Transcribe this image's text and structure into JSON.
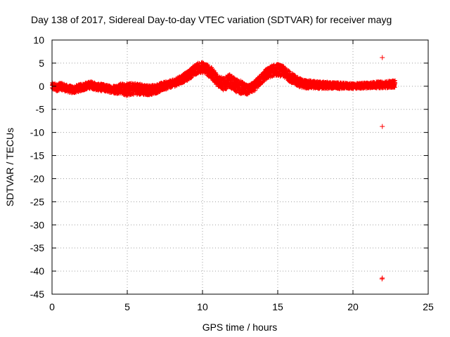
{
  "chart_data": {
    "type": "scatter",
    "title": "Day 138 of 2017, Sidereal Day-to-day VTEC variation (SDTVAR) for receiver mayg",
    "xlabel": "GPS time / hours",
    "ylabel": "SDTVAR / TECUs",
    "xlim": [
      0,
      25
    ],
    "ylim": [
      -45,
      10
    ],
    "x_ticks": [
      0,
      5,
      10,
      15,
      20,
      25
    ],
    "y_ticks": [
      10,
      5,
      0,
      -5,
      -10,
      -15,
      -20,
      -25,
      -30,
      -35,
      -40,
      -45
    ],
    "x_tick_labels": [
      "0",
      "5",
      "10",
      "15",
      "20",
      "25"
    ],
    "y_tick_labels": [
      "10",
      "5",
      "0",
      "-5",
      "-10",
      "-15",
      "-20",
      "-25",
      "-30",
      "-35",
      "-40",
      "-45"
    ],
    "grid": true,
    "marker": "+",
    "color": "#ff0000",
    "series": [
      {
        "name": "SDTVAR band (center)",
        "x": [
          0.0,
          0.3,
          0.6,
          1.0,
          1.4,
          1.8,
          2.2,
          2.6,
          3.0,
          3.4,
          3.8,
          4.2,
          4.6,
          5.0,
          5.4,
          5.8,
          6.2,
          6.6,
          7.0,
          7.4,
          7.8,
          8.2,
          8.6,
          9.0,
          9.4,
          9.8,
          10.2,
          10.6,
          11.0,
          11.4,
          11.8,
          12.2,
          12.6,
          13.0,
          13.4,
          13.8,
          14.2,
          14.6,
          15.0,
          15.4,
          15.8,
          16.2,
          16.6,
          17.0,
          17.5,
          18.0,
          18.5,
          19.0,
          19.5,
          20.0,
          20.5,
          21.0,
          21.5,
          22.0,
          22.4,
          22.8
        ],
        "y": [
          0.0,
          -0.3,
          0.0,
          -0.5,
          -0.8,
          -0.4,
          0.0,
          0.3,
          -0.2,
          -0.3,
          -0.6,
          -0.7,
          -0.5,
          -0.8,
          -0.5,
          -0.6,
          -0.9,
          -0.8,
          -0.5,
          0.0,
          0.4,
          0.8,
          1.5,
          2.2,
          3.3,
          4.1,
          3.9,
          2.8,
          1.3,
          0.4,
          1.2,
          0.2,
          -0.3,
          -0.8,
          -0.2,
          1.2,
          2.5,
          3.3,
          3.6,
          3.1,
          2.1,
          1.2,
          0.6,
          0.4,
          0.3,
          0.2,
          0.2,
          0.1,
          0.1,
          0.0,
          0.1,
          0.2,
          0.3,
          0.3,
          0.4,
          0.5
        ]
      },
      {
        "name": "SDTVAR band (spread)",
        "x": [
          0.0,
          2.0,
          4.0,
          5.0,
          6.0,
          8.0,
          9.8,
          11.0,
          12.5,
          13.0,
          15.0,
          17.0,
          20.0,
          22.8
        ],
        "y": [
          0.8,
          0.8,
          0.8,
          1.4,
          1.2,
          0.8,
          1.2,
          1.3,
          1.5,
          1.0,
          1.3,
          0.9,
          0.6,
          0.8
        ]
      },
      {
        "name": "Outliers",
        "x": [
          21.95,
          21.95,
          21.95,
          21.93
        ],
        "y": [
          6.2,
          -8.7,
          -41.5,
          -41.7
        ]
      }
    ]
  }
}
